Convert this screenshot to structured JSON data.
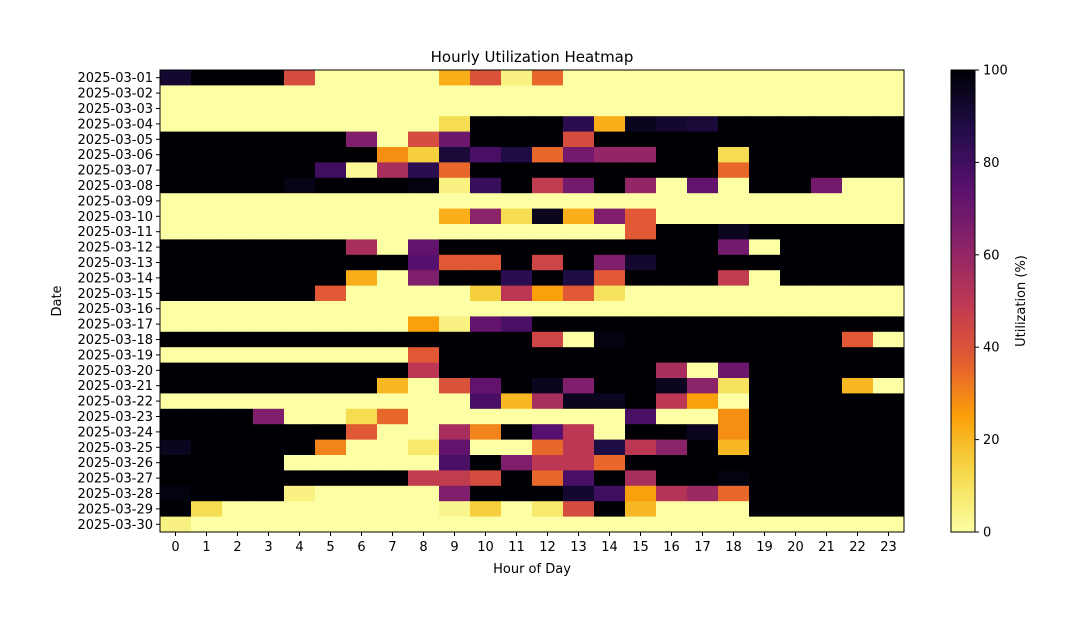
{
  "chart_data": {
    "type": "heatmap",
    "title": "Hourly Utilization Heatmap",
    "xlabel": "Hour of Day",
    "ylabel": "Date",
    "colorbar_label": "Utilization (%)",
    "colormap": "inferno_r",
    "value_range": [
      0,
      100
    ],
    "colorbar_ticks": [
      0,
      20,
      40,
      60,
      80,
      100
    ],
    "x": [
      "0",
      "1",
      "2",
      "3",
      "4",
      "5",
      "6",
      "7",
      "8",
      "9",
      "10",
      "11",
      "12",
      "13",
      "14",
      "15",
      "16",
      "17",
      "18",
      "19",
      "20",
      "21",
      "22",
      "23"
    ],
    "y": [
      "2025-03-01",
      "2025-03-02",
      "2025-03-03",
      "2025-03-04",
      "2025-03-05",
      "2025-03-06",
      "2025-03-07",
      "2025-03-08",
      "2025-03-09",
      "2025-03-10",
      "2025-03-11",
      "2025-03-12",
      "2025-03-13",
      "2025-03-14",
      "2025-03-15",
      "2025-03-16",
      "2025-03-17",
      "2025-03-18",
      "2025-03-19",
      "2025-03-20",
      "2025-03-21",
      "2025-03-22",
      "2025-03-23",
      "2025-03-24",
      "2025-03-25",
      "2025-03-26",
      "2025-03-27",
      "2025-03-28",
      "2025-03-29",
      "2025-03-30"
    ],
    "z": [
      [
        92,
        100,
        100,
        100,
        42,
        0,
        0,
        0,
        0,
        22,
        40,
        5,
        35,
        0,
        0,
        0,
        0,
        0,
        0,
        0,
        0,
        0,
        0,
        0
      ],
      [
        0,
        0,
        0,
        0,
        0,
        0,
        0,
        0,
        0,
        0,
        0,
        0,
        0,
        0,
        0,
        0,
        0,
        0,
        0,
        0,
        0,
        0,
        0,
        0
      ],
      [
        0,
        0,
        0,
        0,
        0,
        0,
        0,
        0,
        0,
        0,
        0,
        0,
        0,
        0,
        0,
        0,
        0,
        0,
        0,
        0,
        0,
        0,
        0,
        0
      ],
      [
        0,
        0,
        0,
        0,
        0,
        0,
        0,
        0,
        0,
        12,
        100,
        100,
        100,
        85,
        22,
        95,
        92,
        90,
        100,
        100,
        100,
        100,
        100,
        100
      ],
      [
        100,
        100,
        100,
        100,
        100,
        100,
        65,
        0,
        42,
        70,
        100,
        100,
        100,
        42,
        100,
        100,
        100,
        100,
        100,
        100,
        100,
        100,
        100,
        100
      ],
      [
        100,
        100,
        100,
        100,
        100,
        100,
        100,
        28,
        15,
        90,
        78,
        88,
        35,
        68,
        60,
        60,
        100,
        100,
        12,
        100,
        100,
        100,
        100,
        100
      ],
      [
        100,
        100,
        100,
        100,
        100,
        80,
        2,
        55,
        85,
        35,
        100,
        100,
        100,
        100,
        100,
        100,
        100,
        100,
        35,
        100,
        100,
        100,
        100,
        100
      ],
      [
        100,
        100,
        100,
        100,
        97,
        100,
        100,
        100,
        98,
        5,
        82,
        100,
        48,
        68,
        100,
        60,
        0,
        72,
        0,
        100,
        100,
        68,
        0,
        0
      ],
      [
        0,
        0,
        0,
        0,
        0,
        0,
        0,
        0,
        0,
        0,
        0,
        0,
        0,
        0,
        0,
        0,
        0,
        0,
        0,
        0,
        0,
        0,
        0,
        0
      ],
      [
        0,
        0,
        0,
        0,
        0,
        0,
        0,
        0,
        0,
        22,
        62,
        12,
        95,
        22,
        65,
        38,
        0,
        0,
        0,
        0,
        0,
        0,
        0,
        0
      ],
      [
        0,
        0,
        0,
        0,
        0,
        0,
        0,
        0,
        0,
        0,
        0,
        0,
        0,
        0,
        0,
        38,
        100,
        100,
        95,
        100,
        100,
        100,
        100,
        100
      ],
      [
        100,
        100,
        100,
        100,
        100,
        100,
        55,
        0,
        72,
        100,
        100,
        100,
        100,
        100,
        100,
        100,
        100,
        100,
        68,
        0,
        100,
        100,
        100,
        100
      ],
      [
        100,
        100,
        100,
        100,
        100,
        100,
        100,
        100,
        75,
        38,
        38,
        100,
        45,
        100,
        65,
        92,
        100,
        100,
        100,
        100,
        100,
        100,
        100,
        100
      ],
      [
        100,
        100,
        100,
        100,
        100,
        100,
        22,
        0,
        65,
        100,
        100,
        85,
        100,
        88,
        38,
        100,
        100,
        100,
        48,
        0,
        100,
        100,
        100,
        100
      ],
      [
        100,
        100,
        100,
        100,
        100,
        38,
        0,
        0,
        0,
        0,
        15,
        50,
        25,
        38,
        10,
        0,
        0,
        0,
        0,
        0,
        0,
        0,
        0,
        0
      ],
      [
        0,
        0,
        0,
        0,
        0,
        0,
        0,
        0,
        0,
        0,
        0,
        0,
        0,
        0,
        0,
        0,
        0,
        0,
        0,
        0,
        0,
        0,
        0,
        0
      ],
      [
        0,
        0,
        0,
        0,
        0,
        0,
        0,
        0,
        25,
        5,
        72,
        78,
        100,
        100,
        100,
        100,
        100,
        100,
        100,
        100,
        100,
        100,
        100,
        100
      ],
      [
        100,
        100,
        100,
        100,
        100,
        100,
        100,
        100,
        100,
        100,
        100,
        100,
        45,
        0,
        98,
        100,
        100,
        100,
        100,
        100,
        100,
        100,
        38,
        0
      ],
      [
        0,
        0,
        0,
        0,
        0,
        0,
        0,
        0,
        38,
        100,
        100,
        100,
        100,
        100,
        100,
        100,
        100,
        100,
        100,
        100,
        100,
        100,
        100,
        100
      ],
      [
        100,
        100,
        100,
        100,
        100,
        100,
        100,
        100,
        50,
        100,
        100,
        100,
        100,
        100,
        100,
        100,
        55,
        0,
        70,
        100,
        100,
        100,
        100,
        100
      ],
      [
        100,
        100,
        100,
        100,
        100,
        100,
        100,
        20,
        0,
        40,
        72,
        100,
        95,
        65,
        100,
        100,
        95,
        62,
        10,
        100,
        100,
        100,
        20,
        0
      ],
      [
        0,
        0,
        0,
        0,
        0,
        0,
        0,
        0,
        0,
        0,
        78,
        20,
        55,
        95,
        95,
        100,
        50,
        25,
        0,
        100,
        100,
        100,
        100,
        100
      ],
      [
        100,
        100,
        100,
        65,
        0,
        0,
        12,
        35,
        0,
        0,
        0,
        0,
        0,
        0,
        0,
        78,
        0,
        0,
        28,
        100,
        100,
        100,
        100,
        100
      ],
      [
        100,
        100,
        100,
        100,
        100,
        100,
        38,
        0,
        0,
        55,
        30,
        100,
        75,
        50,
        0,
        100,
        100,
        95,
        28,
        100,
        100,
        100,
        100,
        100
      ],
      [
        95,
        100,
        100,
        100,
        100,
        30,
        0,
        0,
        8,
        72,
        0,
        0,
        35,
        50,
        88,
        50,
        62,
        100,
        20,
        100,
        100,
        100,
        100,
        100
      ],
      [
        100,
        100,
        100,
        100,
        0,
        0,
        0,
        0,
        0,
        78,
        100,
        65,
        50,
        50,
        35,
        100,
        100,
        100,
        100,
        100,
        100,
        100,
        100,
        100
      ],
      [
        100,
        100,
        100,
        100,
        100,
        100,
        100,
        100,
        48,
        48,
        42,
        100,
        35,
        78,
        100,
        55,
        100,
        100,
        98,
        100,
        100,
        100,
        100,
        100
      ],
      [
        98,
        100,
        100,
        100,
        5,
        0,
        0,
        0,
        0,
        65,
        100,
        100,
        100,
        92,
        80,
        25,
        52,
        58,
        35,
        100,
        100,
        100,
        100,
        100
      ],
      [
        100,
        12,
        0,
        0,
        0,
        0,
        0,
        0,
        0,
        3,
        15,
        0,
        8,
        42,
        100,
        20,
        0,
        0,
        0,
        100,
        100,
        100,
        100,
        100
      ],
      [
        5,
        0,
        0,
        0,
        0,
        0,
        0,
        0,
        0,
        0,
        0,
        0,
        0,
        0,
        0,
        0,
        0,
        0,
        0,
        0,
        0,
        0,
        0,
        0
      ]
    ]
  }
}
